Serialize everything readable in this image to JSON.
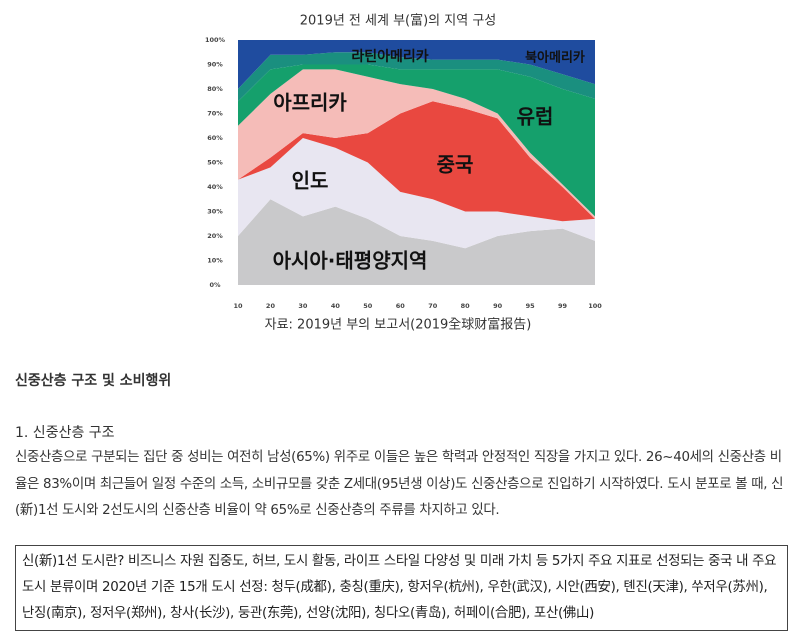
{
  "chart_data": {
    "type": "stacked-area",
    "title": "2019년 전 세계 부(富)의 지역 구성",
    "source": "자료: 2019년 부의 보고서(2019全球财富报告)",
    "categories": [
      "10",
      "20",
      "30",
      "40",
      "50",
      "60",
      "70",
      "80",
      "90",
      "95",
      "99",
      "100"
    ],
    "series": [
      {
        "name": "아시아·태평양지역",
        "color": "#c9c9cb",
        "values": [
          20,
          35,
          28,
          32,
          27,
          20,
          18,
          15,
          20,
          22,
          23,
          18
        ]
      },
      {
        "name": "인도",
        "color": "#e8e6f1",
        "values": [
          23,
          13,
          32,
          24,
          23,
          18,
          17,
          15,
          10,
          6,
          3,
          9
        ]
      },
      {
        "name": "중국",
        "color": "#e94840",
        "values": [
          0,
          4,
          2,
          4,
          12,
          32,
          40,
          42,
          38,
          24,
          14,
          0
        ]
      },
      {
        "name": "아프리카",
        "color": "#f5bcb8",
        "values": [
          22,
          26,
          26,
          28,
          23,
          12,
          5,
          4,
          2,
          2,
          1,
          1
        ]
      },
      {
        "name": "유럽",
        "color": "#15a06c",
        "values": [
          10,
          10,
          2,
          2,
          5,
          6,
          8,
          12,
          18,
          31,
          39,
          48
        ]
      },
      {
        "name": "라틴아메리카",
        "color": "#1a8f7f",
        "values": [
          5,
          6,
          4,
          5,
          5,
          5,
          4,
          4,
          4,
          5,
          6,
          6
        ]
      },
      {
        "name": "북아메리카",
        "color": "#1f4c9f",
        "values": [
          20,
          6,
          6,
          5,
          5,
          7,
          8,
          8,
          8,
          10,
          14,
          18
        ]
      }
    ],
    "ylim": [
      0,
      100
    ],
    "yticks": [
      {
        "value": 0,
        "label": "0%"
      },
      {
        "value": 10,
        "label": "10%"
      },
      {
        "value": 20,
        "label": "20%"
      },
      {
        "value": 30,
        "label": "30%"
      },
      {
        "value": 40,
        "label": "40%"
      },
      {
        "value": 50,
        "label": "50%"
      },
      {
        "value": 60,
        "label": "60%"
      },
      {
        "value": 70,
        "label": "70%"
      },
      {
        "value": 80,
        "label": "80%"
      },
      {
        "value": 90,
        "label": "90%"
      },
      {
        "value": 100,
        "label": "100%"
      }
    ]
  },
  "document": {
    "heading": "신중산층 구조 및 소비행위",
    "section_title": "1. 신중산층 구조",
    "paragraph": "신중산층으로 구분되는 집단 중 성비는 여전히 남성(65%) 위주로 이들은 높은 학력과 안정적인 직장을 가지고 있다. 26~40세의 신중산층 비율은 83%이며 최근들어 일정 수준의 소득, 소비규모를 갖춘 Z세대(95년생 이상)도 신중산층으로 진입하기 시작하였다. 도시 분포로 볼 때, 신(新)1선 도시와 2선도시의 신중산층 비율이 약 65%로 신중산층의 주류를 차지하고 있다.",
    "note": "신(新)1선 도시란? 비즈니스 자원 집중도, 허브, 도시 활동, 라이프 스타일 다양성 및 미래 가치 등 5가지 주요 지표로 선정되는 중국 내 주요 도시 분류이며 2020년 기준 15개 도시 선정: 청두(成都), 충칭(重庆), 항저우(杭州), 우한(武汉), 시안(西安), 톈진(天津), 쑤저우(苏州), 난징(南京), 정저우(郑州), 창사(长沙), 둥관(东莞), 선양(沈阳), 칭다오(青岛), 허페이(合肥), 포산(佛山)"
  }
}
